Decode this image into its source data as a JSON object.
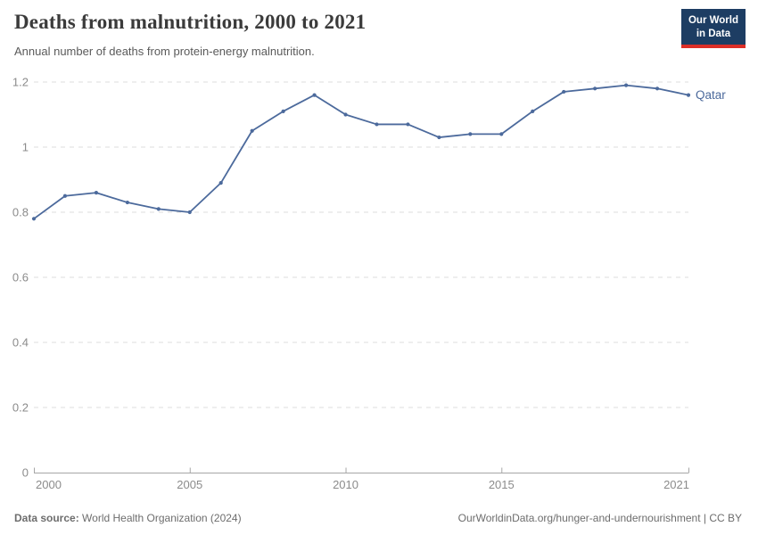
{
  "header": {
    "title": "Deaths from malnutrition, 2000 to 2021",
    "subtitle": "Annual number of deaths from protein-energy malnutrition."
  },
  "logo": {
    "line1": "Our World",
    "line2": "in Data"
  },
  "chart_data": {
    "type": "line",
    "title": "Deaths from malnutrition, 2000 to 2021",
    "subtitle": "Annual number of deaths from protein-energy malnutrition.",
    "x": [
      2000,
      2001,
      2002,
      2003,
      2004,
      2005,
      2006,
      2007,
      2008,
      2009,
      2010,
      2011,
      2012,
      2013,
      2014,
      2015,
      2016,
      2017,
      2018,
      2019,
      2020,
      2021
    ],
    "series": [
      {
        "name": "Qatar",
        "color": "#4C6A9C",
        "values": [
          0.78,
          0.85,
          0.86,
          0.83,
          0.81,
          0.8,
          0.89,
          1.05,
          1.11,
          1.16,
          1.1,
          1.07,
          1.07,
          1.03,
          1.04,
          1.04,
          1.11,
          1.17,
          1.18,
          1.19,
          1.18,
          1.16
        ]
      }
    ],
    "xlim": [
      2000,
      2021
    ],
    "ylim": [
      0,
      1.2
    ],
    "yticks": [
      0,
      0.2,
      0.4,
      0.6,
      0.8,
      1,
      1.2
    ],
    "ytick_labels": [
      "0",
      "0.2",
      "0.4",
      "0.6",
      "0.8",
      "1",
      "1.2"
    ],
    "xticks": [
      2000,
      2005,
      2010,
      2015,
      2021
    ],
    "xtick_labels": [
      "2000",
      "2005",
      "2010",
      "2015",
      "2021"
    ],
    "grid": "horizontal-dashed",
    "legend": "series-end-label"
  },
  "footer": {
    "datasource_label": "Data source:",
    "datasource_value": "World Health Organization (2024)",
    "attribution": "OurWorldinData.org/hunger-and-undernourishment | CC BY"
  },
  "colors": {
    "line": "#4C6A9C",
    "logo_navy": "#1d3d63",
    "logo_red": "#dc2e27",
    "grid": "#dcdcdc",
    "axis": "#a6a6a6",
    "tick_text": "#8b8b8b"
  }
}
